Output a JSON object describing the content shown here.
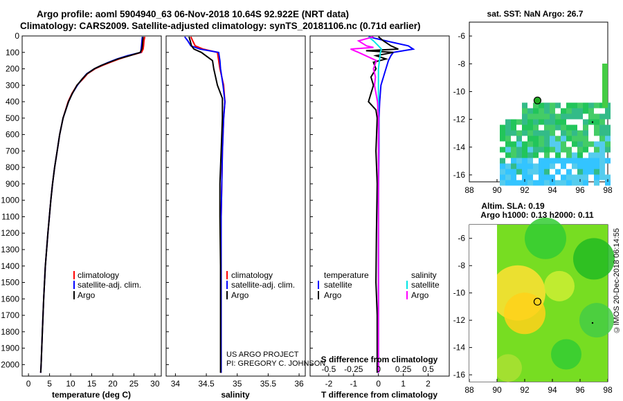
{
  "header": {
    "line1": "Argo profile: aoml 5904940_63 06-Nov-2018 10.64S 92.922E (NRT data)",
    "line2": "Climatology: CARS2009. Satellite-adjusted climatology: synTS_20181106.nc (0.71d earlier)"
  },
  "credit": {
    "line1": "US ARGO PROJECT",
    "line2": "PI: GREGORY C. JOHNSON"
  },
  "timestamp": "©IMOS 20-Dec-2018 06:14:55",
  "colors": {
    "climatology": "#ff0000",
    "satellite": "#0000ff",
    "argo": "#000000",
    "sat_salinity": "#00e5e5",
    "argo_salinity": "#ff00ff"
  },
  "chart_data": [
    {
      "type": "line",
      "id": "temperature",
      "xlabel": "temperature (deg C)",
      "ylabel": "",
      "xlim": [
        -1.5,
        31.5
      ],
      "ylim": [
        2070,
        0
      ],
      "xticks": [
        0,
        5,
        10,
        15,
        20,
        25,
        30
      ],
      "yticks": [
        0,
        100,
        200,
        300,
        400,
        500,
        600,
        700,
        800,
        900,
        1000,
        1100,
        1200,
        1300,
        1400,
        1500,
        1600,
        1700,
        1800,
        1900,
        2000
      ],
      "legend": [
        "climatology",
        "satellite-adj. clim.",
        "Argo"
      ],
      "series": [
        {
          "name": "climatology",
          "depth": [
            5,
            30,
            60,
            80,
            100,
            120,
            140,
            160,
            180,
            200,
            230,
            260,
            300,
            350,
            400,
            500,
            600,
            700,
            800,
            900,
            1000,
            1200,
            1400,
            1600,
            1800,
            2000,
            2050
          ],
          "values": [
            27.6,
            27.4,
            27.3,
            27.2,
            26.8,
            24,
            21.5,
            19.5,
            17.5,
            15.8,
            14,
            13,
            11.5,
            10.3,
            9.4,
            8.2,
            7.4,
            6.8,
            6.2,
            5.7,
            5.3,
            4.6,
            4.0,
            3.6,
            3.3,
            3.0,
            2.9
          ]
        },
        {
          "name": "satellite-adj. clim.",
          "depth": [
            5,
            30,
            60,
            80,
            100,
            120,
            140,
            160,
            180,
            200,
            230,
            260,
            300,
            350,
            400,
            500,
            600,
            700,
            800,
            900,
            1000,
            1200,
            1400,
            1600,
            1800,
            2000,
            2050
          ],
          "values": [
            27.0,
            26.9,
            26.8,
            26.7,
            26.6,
            23.5,
            21,
            19,
            17.2,
            15.6,
            13.8,
            12.8,
            11.6,
            10.4,
            9.5,
            8.2,
            7.4,
            6.8,
            6.2,
            5.7,
            5.3,
            4.6,
            4.0,
            3.6,
            3.3,
            3.0,
            2.9
          ]
        },
        {
          "name": "Argo",
          "depth": [
            5,
            30,
            60,
            80,
            100,
            120,
            140,
            160,
            180,
            200,
            230,
            260,
            300,
            350,
            400,
            500,
            600,
            700,
            800,
            900,
            1000,
            1200,
            1400,
            1600,
            1800,
            2000,
            2050
          ],
          "values": [
            27.2,
            27.1,
            27,
            26.9,
            26.5,
            24,
            21.2,
            19.2,
            17.2,
            15.6,
            13.9,
            12.8,
            11.5,
            10.4,
            9.5,
            8.2,
            7.4,
            6.8,
            6.2,
            5.7,
            5.3,
            4.6,
            4.0,
            3.6,
            3.3,
            3.0,
            2.9
          ]
        }
      ]
    },
    {
      "type": "line",
      "id": "salinity",
      "xlabel": "salinity",
      "xlim": [
        33.85,
        36.1
      ],
      "ylim": [
        2070,
        0
      ],
      "xticks": [
        34,
        34.5,
        35,
        35.5,
        36
      ],
      "xticklabels": [
        "34",
        "34.5",
        "35",
        "35.5",
        "36"
      ],
      "legend": [
        "climatology",
        "satellite-adj. clim.",
        "Argo"
      ],
      "series": [
        {
          "name": "climatology",
          "depth": [
            5,
            30,
            60,
            80,
            100,
            150,
            200,
            300,
            400,
            500,
            700,
            900,
            1100,
            1400,
            1700,
            2000,
            2050
          ],
          "values": [
            34.25,
            34.28,
            34.32,
            34.45,
            34.68,
            34.7,
            34.72,
            34.78,
            34.8,
            34.78,
            34.76,
            34.75,
            34.74,
            34.74,
            34.74,
            34.74,
            34.74
          ]
        },
        {
          "name": "satellite-adj. clim.",
          "depth": [
            5,
            30,
            60,
            80,
            100,
            150,
            200,
            300,
            400,
            500,
            700,
            900,
            1100,
            1400,
            1700,
            2000,
            2050
          ],
          "values": [
            34.15,
            34.2,
            34.25,
            34.4,
            34.7,
            34.72,
            34.73,
            34.77,
            34.8,
            34.78,
            34.76,
            34.75,
            34.74,
            34.74,
            34.74,
            34.74,
            34.74
          ]
        },
        {
          "name": "Argo",
          "depth": [
            5,
            30,
            60,
            80,
            100,
            150,
            200,
            300,
            380,
            500,
            700,
            900,
            1100,
            1400,
            1700,
            2000,
            2050
          ],
          "values": [
            34.22,
            34.24,
            34.26,
            34.3,
            34.42,
            34.6,
            34.62,
            34.68,
            34.76,
            34.76,
            34.74,
            34.72,
            34.72,
            34.73,
            34.73,
            34.73,
            34.73
          ]
        }
      ]
    },
    {
      "type": "line",
      "id": "differences",
      "xlabel": "T difference from climatology",
      "xlabel2": "S difference from climatology",
      "xlim": [
        -2.75,
        2.85
      ],
      "ylim": [
        2070,
        0
      ],
      "xticks": [
        -2,
        -1,
        0,
        1,
        2
      ],
      "xticks2": [
        -0.5,
        -0.25,
        0,
        0.25,
        0.5
      ],
      "xticklabels2": [
        "-0.5",
        "-0.25",
        "0",
        "0.25",
        "0.5"
      ],
      "legend_temperature_title": "temperature",
      "legend_salinity_title": "salinity",
      "legend_temperature": [
        "satellite",
        "Argo"
      ],
      "legend_salinity": [
        "satellite",
        "Argo"
      ],
      "series": [
        {
          "name": "T satellite",
          "depth": [
            5,
            30,
            60,
            80,
            90,
            100,
            120,
            150,
            200,
            300,
            400,
            500,
            700,
            1000,
            1500,
            2000,
            2050
          ],
          "values": [
            -0.4,
            0.3,
            1.2,
            1.4,
            1.0,
            0.6,
            0.5,
            0.4,
            0.3,
            0.1,
            0.05,
            0.02,
            0.02,
            0,
            0,
            0,
            0
          ]
        },
        {
          "name": "T Argo",
          "depth": [
            5,
            30,
            60,
            80,
            90,
            100,
            120,
            140,
            160,
            200,
            250,
            300,
            350,
            400,
            450,
            500,
            700,
            900,
            1200,
            1500,
            1700,
            2000,
            2050
          ],
          "values": [
            0,
            0.2,
            0.5,
            0.8,
            -0.5,
            0.6,
            -0.1,
            0.3,
            -0.2,
            -0.1,
            -0.3,
            -0.2,
            -0.3,
            -0.4,
            -0.1,
            -0.05,
            -0.1,
            -0.05,
            -0.08,
            -0.1,
            -0.05,
            -0.05,
            -0.05
          ]
        },
        {
          "name": "S satellite",
          "depth": [
            5,
            30,
            60,
            80,
            100,
            150,
            200,
            300,
            500,
            1000,
            1500,
            2000,
            2050
          ],
          "values": [
            -0.1,
            -0.05,
            0,
            0.03,
            0.02,
            0.01,
            0,
            0,
            0,
            0,
            0,
            0,
            0
          ]
        },
        {
          "name": "S Argo",
          "depth": [
            5,
            30,
            60,
            70,
            80,
            100,
            150,
            200,
            250,
            300,
            400,
            500,
            700,
            1000,
            1500,
            2000,
            2050
          ],
          "values": [
            -0.05,
            -0.2,
            -0.12,
            -0.05,
            -0.28,
            -0.2,
            -0.02,
            -0.05,
            -0.03,
            -0.04,
            -0.01,
            0,
            0,
            0,
            0,
            0,
            0
          ]
        }
      ]
    },
    {
      "type": "heatmap",
      "id": "sst_map",
      "title": "sat. SST: NaN Argo: 26.7",
      "xlim": [
        88,
        98
      ],
      "ylim": [
        -16.5,
        -5
      ],
      "xticks": [
        88,
        90,
        92,
        94,
        96,
        98
      ],
      "yticks": [
        -6,
        -8,
        -10,
        -12,
        -14,
        -16
      ],
      "profile_location": [
        92.922,
        -10.64
      ]
    },
    {
      "type": "heatmap",
      "id": "sla_map",
      "title": "Altim. SLA: 0.19",
      "subtitle": "Argo h1000: 0.13 h2000: 0.11",
      "xlim": [
        88,
        98
      ],
      "ylim": [
        -16.5,
        -5
      ],
      "xticks": [
        88,
        90,
        92,
        94,
        96,
        98
      ],
      "yticks": [
        -6,
        -8,
        -10,
        -12,
        -14,
        -16
      ],
      "profile_location": [
        92.922,
        -10.64
      ]
    }
  ]
}
